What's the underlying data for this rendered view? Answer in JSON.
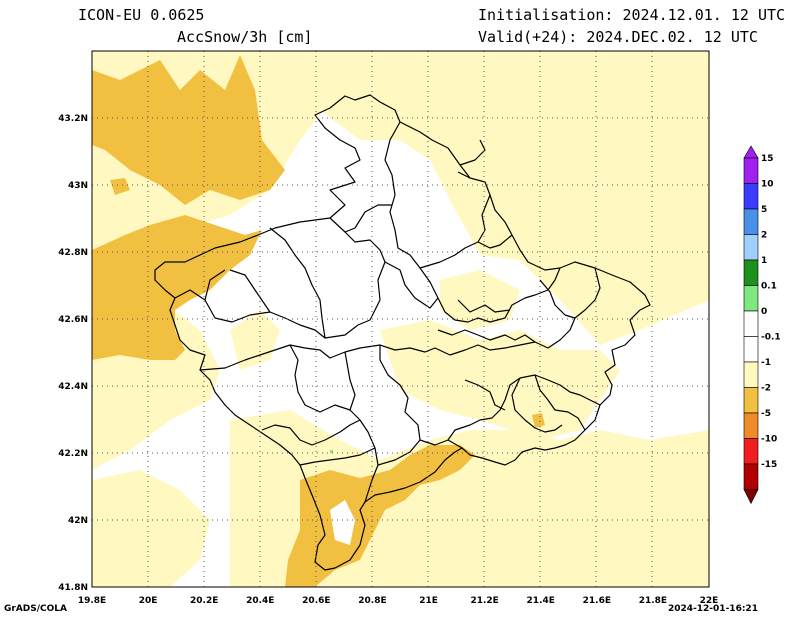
{
  "header": {
    "model": "ICON-EU 0.0625",
    "variable": "AccSnow/3h [cm]",
    "initialisation": "Initialisation: 2024.12.01. 12 UTC",
    "valid": "Valid(+24): 2024.DEC.02. 12 UTC"
  },
  "footer": {
    "software": "GrADS/COLA",
    "timestamp": "2024-12-01-16:21"
  },
  "chart_data": {
    "type": "map",
    "lon_range": [
      19.8,
      22.0
    ],
    "lat_range": [
      41.8,
      43.4
    ],
    "grid": true,
    "x_ticks": [
      {
        "v": 19.8,
        "label": "19.8E"
      },
      {
        "v": 20.0,
        "label": "20E"
      },
      {
        "v": 20.2,
        "label": "20.2E"
      },
      {
        "v": 20.4,
        "label": "20.4E"
      },
      {
        "v": 20.6,
        "label": "20.6E"
      },
      {
        "v": 20.8,
        "label": "20.8E"
      },
      {
        "v": 21.0,
        "label": "21E"
      },
      {
        "v": 21.2,
        "label": "21.2E"
      },
      {
        "v": 21.4,
        "label": "21.4E"
      },
      {
        "v": 21.6,
        "label": "21.6E"
      },
      {
        "v": 21.8,
        "label": "21.8E"
      },
      {
        "v": 22.0,
        "label": "22E"
      }
    ],
    "y_ticks": [
      {
        "v": 41.8,
        "label": "41.8N"
      },
      {
        "v": 42.0,
        "label": "42N"
      },
      {
        "v": 42.2,
        "label": "42.2N"
      },
      {
        "v": 42.4,
        "label": "42.4N"
      },
      {
        "v": 42.6,
        "label": "42.6N"
      },
      {
        "v": 42.8,
        "label": "42.8N"
      },
      {
        "v": 43.0,
        "label": "43N"
      },
      {
        "v": 43.2,
        "label": "43.2N"
      }
    ],
    "legend": {
      "placement": "right",
      "levels": [
        {
          "label": "15",
          "color": "#a020f0"
        },
        {
          "label": "10",
          "color": "#3c3cff"
        },
        {
          "label": "5",
          "color": "#4a90e8"
        },
        {
          "label": "2",
          "color": "#a0d0ff"
        },
        {
          "label": "1",
          "color": "#1e901e"
        },
        {
          "label": "0.1",
          "color": "#7ee87e"
        },
        {
          "label": "0",
          "color": "#ffffff"
        },
        {
          "label": "-0.1",
          "color": "#ffffff"
        },
        {
          "label": "-1",
          "color": "#fff8c0"
        },
        {
          "label": "-2",
          "color": "#f2c040"
        },
        {
          "label": "-5",
          "color": "#f08c28"
        },
        {
          "label": "-10",
          "color": "#f01e1e"
        },
        {
          "label": "-15",
          "color": "#b00000"
        },
        {
          "label": "",
          "color": "#800000"
        }
      ]
    },
    "colors": {
      "light_yellow": "#fff8c0",
      "orange_yellow": "#f2c040",
      "orange": "#f08c28",
      "green": "#7ee87e"
    }
  }
}
